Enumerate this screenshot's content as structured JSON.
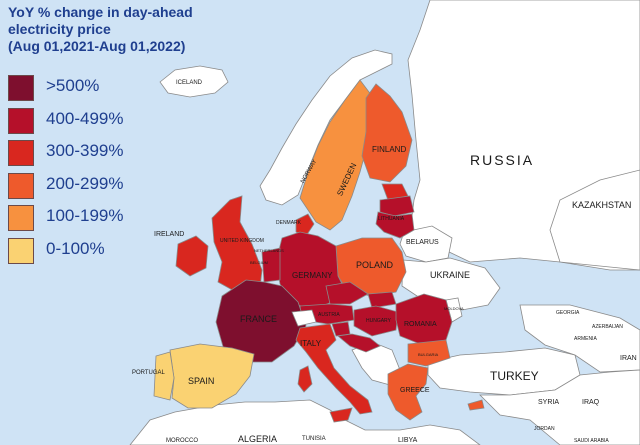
{
  "title_lines": [
    "YoY % change in day-ahead",
    "electricity price",
    "(Aug 01,2021-Aug 01,2022)"
  ],
  "legend": [
    {
      "label": ">500%",
      "color": "#7e0f2e"
    },
    {
      "label": "400-499%",
      "color": "#b5102a"
    },
    {
      "label": "300-399%",
      "color": "#d9271f"
    },
    {
      "label": "200-299%",
      "color": "#ee5a2c"
    },
    {
      "label": "100-199%",
      "color": "#f7913f"
    },
    {
      "label": "0-100%",
      "color": "#fad272"
    }
  ],
  "colors": {
    "sea": "#cfe3f5",
    "non_eu_land": "#ffffff",
    "border": "#8a8a8a"
  },
  "labels": {
    "iceland": "ICELAND",
    "norway": "NORWAY",
    "sweden": "SWEDEN",
    "finland": "FINLAND",
    "russia": "RUSSIA",
    "kazakhstan": "KAZAKHSTAN",
    "ireland": "IRELAND",
    "uk": "UNITED KINGDOM",
    "denmark": "DENMARK",
    "netherlands": "NETHERLANDS",
    "belgium": "BELGIUM",
    "lithuania": "LITHUANIA",
    "belarus": "BELARUS",
    "poland": "POLAND",
    "germany": "GERMANY",
    "ukraine": "UKRAINE",
    "france": "FRANCE",
    "austria": "AUSTRIA",
    "hungary": "HUNGARY",
    "romania": "ROMANIA",
    "moldova": "MOLDOVA",
    "georgia": "GEORGIA",
    "azerbaijan": "AZERBAIJAN",
    "armenia": "ARMENIA",
    "italy": "ITALY",
    "bulgaria": "BULGARIA",
    "portugal": "PORTUGAL",
    "spain": "SPAIN",
    "greece": "GREECE",
    "turkey": "TURKEY",
    "syria": "SYRIA",
    "iraq": "IRAQ",
    "iran": "IRAN",
    "morocco": "MOROCCO",
    "algeria": "ALGERIA",
    "tunisia": "TUNISIA",
    "libya": "LIBYA",
    "jordan": "JORDAN",
    "saudi_arabia": "SAUDI ARABIA"
  }
}
